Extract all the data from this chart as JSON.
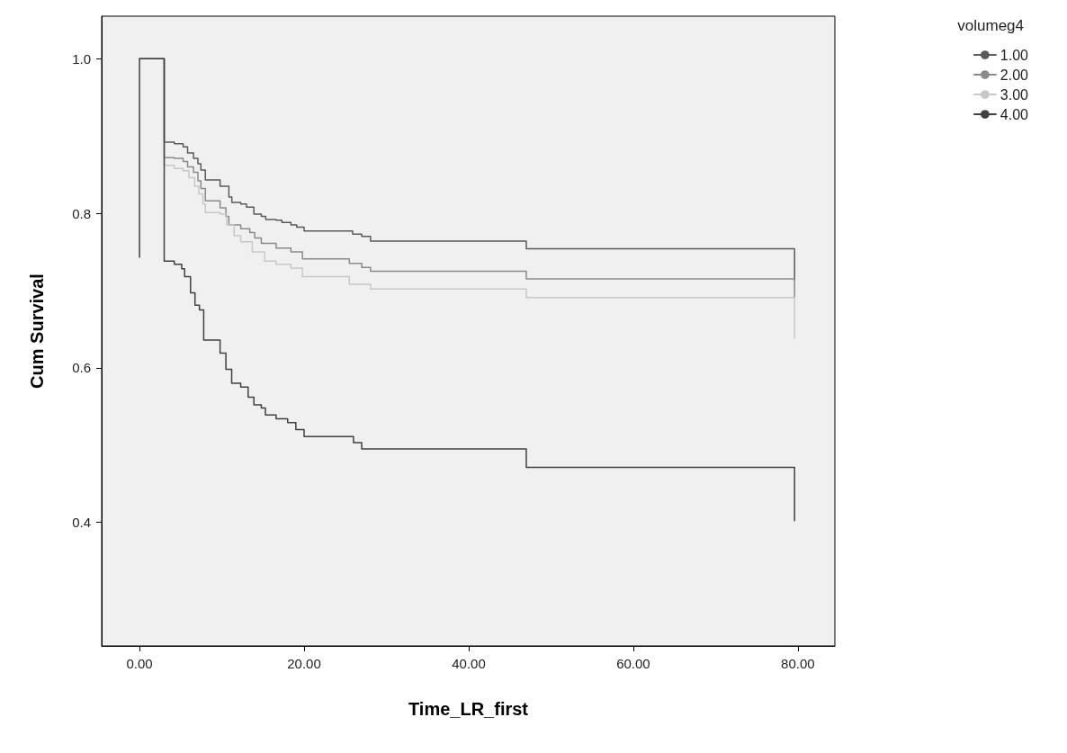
{
  "chart_data": {
    "type": "step",
    "xlabel": "Time_LR_first",
    "ylabel": "Cum Survival",
    "legend_title": "volumeg4",
    "legend": "top right",
    "grid": false,
    "marker": "none",
    "line_style": "solid",
    "xlim": [
      -4.6,
      84.5
    ],
    "xticks": [
      {
        "value": 0,
        "label": "0.00"
      },
      {
        "value": 20,
        "label": "20.00"
      },
      {
        "value": 40,
        "label": "40.00"
      },
      {
        "value": 60,
        "label": "60.00"
      },
      {
        "value": 80,
        "label": "80.00"
      }
    ],
    "ylim": [
      0.24,
      1.055
    ],
    "yticks": [
      0.4,
      0.6,
      0.8,
      {
        "value": 1,
        "label": "1.0"
      }
    ],
    "series": [
      {
        "name": "1.00",
        "color": "#5a5a5a",
        "x": [
          0,
          3.0,
          4.23,
          5.3,
          5.84,
          6.56,
          7.1,
          7.46,
          8.0,
          9.79,
          10.86,
          11.22,
          12.3,
          13.0,
          13.9,
          14.8,
          15.34,
          16.6,
          17.3,
          18.4,
          19.1,
          20.0,
          25.9,
          27.0,
          28.07,
          47.0,
          79.6,
          79.6
        ],
        "values": [
          1.0,
          0.892,
          0.89,
          0.886,
          0.878,
          0.871,
          0.864,
          0.856,
          0.843,
          0.835,
          0.821,
          0.814,
          0.812,
          0.808,
          0.799,
          0.796,
          0.792,
          0.791,
          0.788,
          0.785,
          0.782,
          0.777,
          0.773,
          0.77,
          0.764,
          0.754,
          0.754,
          0.713
        ]
      },
      {
        "name": "2.00",
        "color": "#8a8a8a",
        "x": [
          0,
          3.0,
          4.23,
          5.3,
          5.84,
          6.56,
          7.1,
          7.46,
          8.0,
          9.79,
          10.5,
          10.86,
          12.3,
          13.4,
          14.0,
          14.8,
          16.6,
          18.4,
          19.8,
          25.5,
          27.0,
          28.07,
          47.0,
          79.6,
          79.6
        ],
        "values": [
          1.0,
          0.872,
          0.871,
          0.867,
          0.86,
          0.853,
          0.842,
          0.832,
          0.816,
          0.807,
          0.796,
          0.785,
          0.78,
          0.775,
          0.768,
          0.761,
          0.755,
          0.75,
          0.741,
          0.735,
          0.73,
          0.725,
          0.715,
          0.715,
          0.691
        ]
      },
      {
        "name": "3.00",
        "color": "#c8c8c8",
        "x": [
          0,
          3.0,
          4.23,
          5.3,
          6.0,
          6.7,
          7.2,
          7.7,
          8.0,
          9.79,
          10.6,
          11.5,
          12.3,
          13.7,
          15.2,
          16.6,
          18.4,
          19.8,
          25.5,
          28.07,
          47.0,
          79.6,
          79.6
        ],
        "values": [
          1.0,
          0.862,
          0.858,
          0.855,
          0.846,
          0.835,
          0.825,
          0.812,
          0.801,
          0.799,
          0.785,
          0.771,
          0.763,
          0.75,
          0.738,
          0.734,
          0.729,
          0.718,
          0.708,
          0.702,
          0.691,
          0.691,
          0.638
        ]
      },
      {
        "name": "4.00",
        "color": "#404040",
        "x": [
          0,
          0,
          3.0,
          4.23,
          5.13,
          5.48,
          6.2,
          6.74,
          7.28,
          7.8,
          9.79,
          10.5,
          11.2,
          12.3,
          13.2,
          13.9,
          14.8,
          15.3,
          16.6,
          18.0,
          19.0,
          20.0,
          26.0,
          27.0,
          47.0,
          79.6,
          79.6
        ],
        "values": [
          0.743,
          1.0,
          0.738,
          0.734,
          0.728,
          0.718,
          0.697,
          0.681,
          0.675,
          0.636,
          0.619,
          0.598,
          0.58,
          0.575,
          0.562,
          0.552,
          0.548,
          0.539,
          0.534,
          0.529,
          0.52,
          0.511,
          0.503,
          0.495,
          0.471,
          0.471,
          0.402
        ]
      }
    ]
  }
}
